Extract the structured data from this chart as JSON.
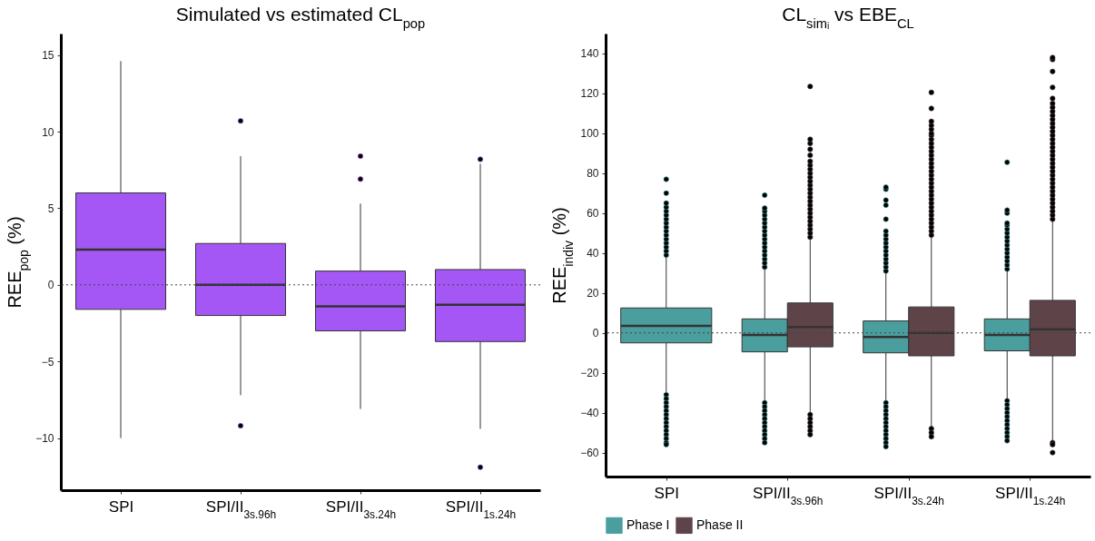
{
  "chart_data": [
    {
      "type": "box",
      "title": "Simulated vs estimated CL$_{pop}$",
      "ylabel": "REE$_{pop}$ (%)",
      "categories": [
        "SPI",
        "SPI/II$_{3s.96h}$",
        "SPI/II$_{3s.24h}$",
        "SPI/II$_{1s.24h}$"
      ],
      "series": [
        {
          "color": "#a557f5",
          "boxes": [
            {
              "low": -10,
              "q1": -1.6,
              "median": 2.3,
              "q3": 6.0,
              "high": 14.6
            },
            {
              "low": -7.2,
              "q1": -2.0,
              "median": 0,
              "q3": 2.7,
              "high": 8.4,
              "outliers": [
                10.7,
                -9.2
              ]
            },
            {
              "low": -8.1,
              "q1": -3.0,
              "median": -1.4,
              "q3": 0.9,
              "high": 5.3,
              "outliers": [
                8.4,
                6.9
              ]
            },
            {
              "low": -9.4,
              "q1": -3.7,
              "median": -1.3,
              "q3": 1.0,
              "high": 7.9,
              "outliers": [
                8.2,
                -11.9
              ]
            }
          ]
        }
      ],
      "ylim": [
        -13.4,
        16.4
      ],
      "yticks": [
        -10,
        -5,
        0,
        5,
        10,
        15
      ],
      "ref_lines": [
        {
          "axis": "y",
          "value": 0,
          "line_style": "dotted"
        }
      ]
    },
    {
      "type": "box",
      "title": "CL$_{simᵢ}$ vs EBE$_{CL}$",
      "ylabel": "REE$_{indiv}$ (%)",
      "categories": [
        "SPI",
        "SPI/II$_{3s.96h}$",
        "SPI/II$_{3s.24h}$",
        "SPI/II$_{1s.24h}$"
      ],
      "series": [
        {
          "name": "Phase I",
          "color": "#4a9e9e",
          "boxes": [
            {
              "low": -30,
              "q1": -5,
              "median": 3.5,
              "q3": 12.5,
              "high": 38,
              "outliers": [
                39,
                41,
                43,
                45,
                47,
                49,
                51,
                53,
                55,
                57,
                59,
                61,
                63,
                65,
                70,
                77,
                -31,
                -33,
                -35,
                -37,
                -39,
                -41,
                -43,
                -45,
                -47,
                -49,
                -51,
                -53,
                -55,
                -56
              ]
            },
            {
              "low": -34,
              "q1": -9.5,
              "median": -1,
              "q3": 7,
              "high": 32,
              "outliers": [
                33,
                35,
                37,
                39,
                41,
                43,
                45,
                47,
                49,
                51,
                53,
                55,
                57,
                59,
                61,
                62.5,
                69,
                -35,
                -37,
                -39,
                -41,
                -43,
                -45,
                -47,
                -49,
                -51,
                -53,
                -55
              ]
            },
            {
              "low": -34,
              "q1": -10,
              "median": -2,
              "q3": 6,
              "high": 30,
              "outliers": [
                31,
                33,
                35,
                37,
                39,
                41,
                43,
                45,
                47,
                49,
                51,
                57,
                64,
                66.5,
                72,
                73,
                -35,
                -37,
                -39,
                -41,
                -43,
                -45,
                -47,
                -49,
                -51,
                -53,
                -55,
                -57
              ]
            },
            {
              "low": -33,
              "q1": -9,
              "median": -1,
              "q3": 7,
              "high": 31,
              "outliers": [
                32,
                34,
                36,
                38,
                40,
                42,
                44,
                46,
                48,
                50,
                52,
                54,
                55,
                60,
                61.5,
                85.5,
                -34,
                -36,
                -38,
                -40,
                -42,
                -44,
                -46,
                -48,
                -50,
                -52,
                -54
              ]
            }
          ]
        },
        {
          "name": "Phase II",
          "color": "#5e4449",
          "boxes": [
            null,
            {
              "low": -40,
              "q1": -7,
              "median": 3,
              "q3": 15,
              "high": 47,
              "outliers": [
                48,
                50,
                52,
                54,
                56,
                58,
                60,
                62,
                64,
                66,
                68,
                70,
                72,
                74,
                76,
                78,
                80,
                82,
                84,
                86,
                89,
                92,
                95,
                97,
                123.5,
                -41,
                -43,
                -45,
                -47,
                -49,
                -51
              ]
            },
            {
              "low": -47,
              "q1": -11.5,
              "median": 0,
              "q3": 13,
              "high": 48,
              "outliers": [
                49,
                51,
                53,
                55,
                57,
                59,
                61,
                63,
                65,
                67,
                69,
                71,
                73,
                75,
                77,
                79,
                81,
                83,
                85,
                87,
                89,
                91,
                93,
                95,
                97,
                99,
                100,
                102,
                104,
                106,
                112.5,
                120.5,
                -48,
                -50,
                -52
              ]
            },
            {
              "low": -54,
              "q1": -11.5,
              "median": 1.8,
              "q3": 16.3,
              "high": 56,
              "outliers": [
                57,
                59,
                61,
                63,
                65,
                67,
                69,
                71,
                73,
                75,
                77,
                79,
                81,
                83,
                85,
                87,
                89,
                91,
                93,
                95,
                97,
                99,
                101,
                103,
                105,
                107,
                109,
                111,
                113,
                115,
                117.5,
                123,
                131,
                137,
                138,
                -55,
                -56,
                -60
              ]
            }
          ]
        }
      ],
      "ylim": [
        -72,
        150
      ],
      "yticks": [
        -60,
        -40,
        -20,
        0,
        20,
        40,
        60,
        80,
        100,
        120,
        140
      ],
      "ref_lines": [
        {
          "axis": "y",
          "value": 0,
          "line_style": "dotted"
        }
      ],
      "legend": "bottom"
    }
  ]
}
